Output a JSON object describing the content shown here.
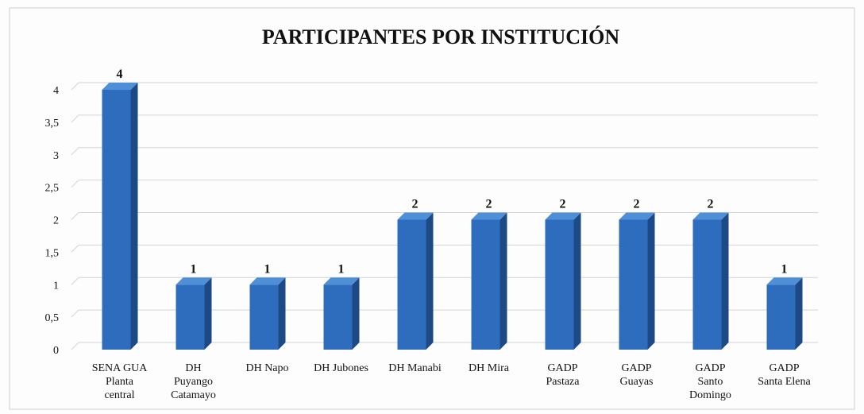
{
  "chart_data": {
    "type": "bar3d",
    "title": "PARTICIPANTES POR INSTITUCIÓN",
    "categories": [
      "SENA GUA\nPlanta\ncentral",
      "DH\nPuyango\nCatamayo",
      "DH Napo",
      "DH Jubones",
      "DH Manabi",
      "DH Mira",
      "GADP\nPastaza",
      "GADP\nGuayas",
      "GADP\nSanto\nDomingo",
      "GADP\nSanta Elena"
    ],
    "values": [
      4,
      1,
      1,
      1,
      2,
      2,
      2,
      2,
      2,
      1
    ],
    "color": "#2e6dbd",
    "ylim": [
      0,
      4
    ],
    "yticks": [
      0,
      {
        "value": 0.5,
        "label": "0,5"
      },
      1,
      {
        "value": 1.5,
        "label": "1,5"
      },
      2,
      {
        "value": 2.5,
        "label": "2,5"
      },
      3,
      {
        "value": 3.5,
        "label": "3,5"
      },
      4
    ],
    "grid": true
  }
}
